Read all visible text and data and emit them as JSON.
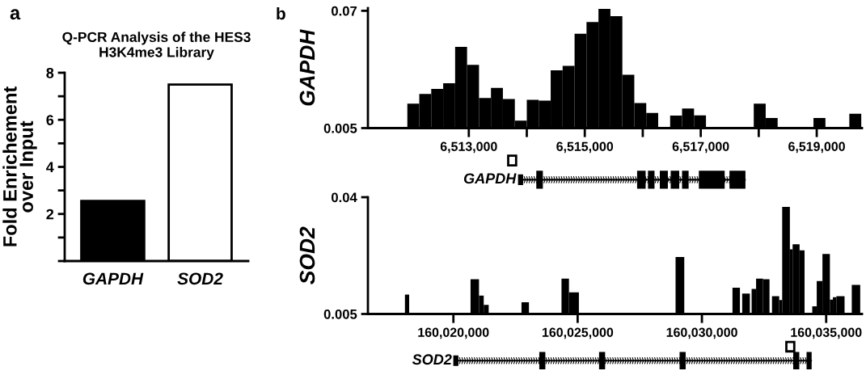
{
  "chart_data": [
    {
      "type": "bar",
      "title": "Q-PCR Analysis of the HES3\nH3K4me3 Library",
      "ylabel": "Fold Enrichement\nover Input",
      "categories": [
        "GAPDH",
        "SOD2"
      ],
      "values": [
        2.55,
        7.5
      ],
      "colors": [
        "#000000",
        "#ffffff"
      ],
      "ylim": [
        0,
        8
      ],
      "yticks": [
        {
          "value": 0,
          "label": null
        },
        {
          "value": 1,
          "label": null
        },
        2,
        {
          "value": 3,
          "label": null
        },
        4,
        {
          "value": 5,
          "label": null
        },
        6,
        {
          "value": 7,
          "label": null
        },
        8
      ],
      "annotations": [
        "a"
      ]
    },
    {
      "type": "histogram",
      "ylabel": "GAPDH",
      "color": "#000000",
      "bins": [
        6511940,
        6512146,
        6512352,
        6512558,
        6512764,
        6512970,
        6513176,
        6513382,
        6513588,
        6513794,
        6514000,
        6514206,
        6514412,
        6514618,
        6514824,
        6515030,
        6515236,
        6515442,
        6515648,
        6515854,
        6516060,
        6516266,
        6516472,
        6516678,
        6516884,
        6517090,
        6517296,
        6517502,
        6517708,
        6517914,
        6518120,
        6518326,
        6518532,
        6518738,
        6518944,
        6519150,
        6519356,
        6519562,
        6519768
      ],
      "values": [
        0.0185,
        0.0239,
        0.0267,
        0.0299,
        0.05,
        0.04,
        0.0217,
        0.0273,
        0.0211,
        0.0091,
        0.0207,
        0.0202,
        0.037,
        0.0395,
        0.0573,
        0.0638,
        0.071,
        0.067,
        0.0346,
        0.0189,
        0.0134,
        null,
        0.0119,
        0.0159,
        0.0121,
        null,
        null,
        null,
        null,
        0.0185,
        0.0106,
        null,
        null,
        null,
        0.0106,
        null,
        null,
        0.0129
      ],
      "xlim": [
        6511260,
        6519780
      ],
      "xticks": [
        {
          "value": 6513000,
          "label": "6,513,000"
        },
        {
          "value": 6514000,
          "label": null
        },
        {
          "value": 6515000,
          "label": "6,515,000"
        },
        {
          "value": 6516000,
          "label": null
        },
        {
          "value": 6517000,
          "label": "6,517,000"
        },
        {
          "value": 6518000,
          "label": null
        },
        {
          "value": 6519000,
          "label": "6,519,000"
        }
      ],
      "ylim": [
        0.005,
        0.0715
      ],
      "yticks": [
        0.005,
        0.07
      ],
      "annotations": [
        "b",
        "GAPDH"
      ]
    },
    {
      "type": "histogram",
      "ylabel": "SOD2",
      "color": "#000000",
      "bins": [
        160018050,
        160018220,
        160020690,
        160021030,
        160021220,
        160021420,
        160022740,
        160023040,
        160024350,
        160024650,
        160025050,
        160028940,
        160029290,
        160031230,
        160031530,
        160031620,
        160031930,
        160032000,
        160032180,
        160032460,
        160032720,
        160032820,
        160033110,
        160033230,
        160033540,
        160033650,
        160033930,
        160034130,
        160034440,
        160034620,
        160034850,
        160035150,
        160035270,
        160035410,
        160035740,
        160036030,
        160036370
      ],
      "values": [
        0.0108,
        null,
        0.0154,
        0.0105,
        0.0077,
        null,
        0.0085,
        null,
        0.0156,
        0.0115,
        null,
        0.0221,
        null,
        0.0129,
        null,
        0.0111,
        null,
        0.0125,
        0.0156,
        0.0154,
        null,
        0.0103,
        0.0092,
        0.0371,
        0.0244,
        0.0259,
        0.0241,
        null,
        0.0073,
        0.0149,
        0.023,
        0.0093,
        0.01,
        0.0103,
        null,
        0.0137
      ],
      "xlim": [
        160016560,
        160036440
      ],
      "xticks": [
        {
          "value": 160020000,
          "label": "160,020,000"
        },
        {
          "value": 160025000,
          "label": "160,025,000"
        },
        {
          "value": 160030000,
          "label": "160,030,000"
        },
        {
          "value": 160035000,
          "label": "160,035,000"
        }
      ],
      "ylim": [
        0.005,
        0.04
      ],
      "yticks": [
        0.005,
        0.04
      ],
      "annotations": [
        "SOD2"
      ]
    }
  ]
}
